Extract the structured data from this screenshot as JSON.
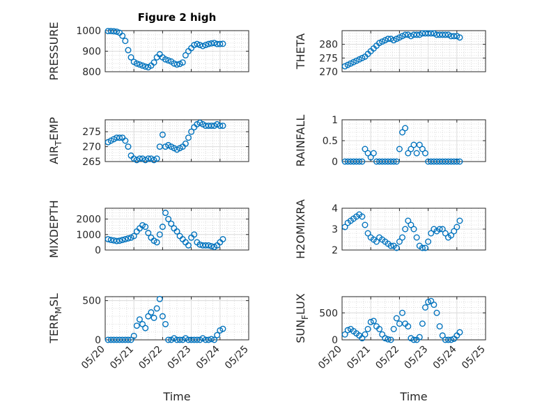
{
  "figure": {
    "title": "Figure 2 high",
    "xlabel": "Time"
  },
  "colors": {
    "marker": "#0072BD",
    "axis": "#262626",
    "grid": "#dcdcdc"
  },
  "chart_data": [
    {
      "type": "scatter",
      "panel": "left-1",
      "ylabel": "PRESSURE",
      "ylim": [
        800,
        1000
      ],
      "yticks": [
        800,
        900,
        1000
      ],
      "xlim": [
        "05/20",
        "05/25"
      ],
      "xticks": [
        "05/20",
        "05/21",
        "05/22",
        "05/23",
        "05/24",
        "05/25"
      ],
      "x_visible": false,
      "x_days": [
        0.1,
        0.2,
        0.3,
        0.4,
        0.5,
        0.6,
        0.7,
        0.8,
        0.9,
        1.0,
        1.1,
        1.2,
        1.3,
        1.4,
        1.5,
        1.6,
        1.7,
        1.8,
        1.9,
        2.0,
        2.1,
        2.2,
        2.3,
        2.4,
        2.5,
        2.6,
        2.7,
        2.8,
        2.9,
        3.0,
        3.1,
        3.2,
        3.3,
        3.4,
        3.5,
        3.6,
        3.7,
        3.8,
        3.9,
        4.0,
        4.1
      ],
      "values": [
        998,
        998,
        997,
        995,
        990,
        975,
        950,
        905,
        870,
        848,
        840,
        835,
        830,
        825,
        822,
        830,
        845,
        870,
        885,
        870,
        860,
        855,
        850,
        840,
        835,
        838,
        845,
        880,
        900,
        915,
        930,
        935,
        930,
        925,
        930,
        935,
        938,
        940,
        935,
        935,
        936
      ]
    },
    {
      "type": "scatter",
      "panel": "right-1",
      "ylabel": "THETA",
      "ylim": [
        270,
        285
      ],
      "yticks": [
        270,
        275,
        280
      ],
      "xlim": [
        "05/20",
        "05/25"
      ],
      "xticks": [
        "05/20",
        "05/21",
        "05/22",
        "05/23",
        "05/24",
        "05/25"
      ],
      "x_visible": false,
      "x_days": [
        0.1,
        0.2,
        0.3,
        0.4,
        0.5,
        0.6,
        0.7,
        0.8,
        0.9,
        1.0,
        1.1,
        1.2,
        1.3,
        1.4,
        1.5,
        1.6,
        1.7,
        1.8,
        1.9,
        2.0,
        2.1,
        2.2,
        2.3,
        2.4,
        2.5,
        2.6,
        2.7,
        2.8,
        2.9,
        3.0,
        3.1,
        3.2,
        3.3,
        3.4,
        3.5,
        3.6,
        3.7,
        3.8,
        3.9,
        4.0,
        4.1
      ],
      "values": [
        272,
        272.5,
        273,
        273.5,
        274,
        274.5,
        275,
        275.5,
        276.5,
        277.5,
        278.5,
        279.5,
        280.5,
        281,
        281.5,
        282,
        282,
        281.5,
        282,
        282.5,
        283,
        283.5,
        283.5,
        283,
        283.5,
        283.5,
        283.5,
        284,
        284,
        284,
        284,
        284,
        283.5,
        283.5,
        283.5,
        283.5,
        283.5,
        283,
        283,
        283,
        282.5
      ]
    },
    {
      "type": "scatter",
      "panel": "left-2",
      "ylabel": "AIR_TEMP",
      "ylim": [
        265,
        279
      ],
      "yticks": [
        265,
        270,
        275
      ],
      "xlim": [
        "05/20",
        "05/25"
      ],
      "xticks": [
        "05/20",
        "05/21",
        "05/22",
        "05/23",
        "05/24",
        "05/25"
      ],
      "x_visible": false,
      "x_days": [
        0.1,
        0.2,
        0.3,
        0.4,
        0.5,
        0.6,
        0.7,
        0.8,
        0.9,
        1.0,
        1.1,
        1.2,
        1.3,
        1.4,
        1.5,
        1.6,
        1.7,
        1.8,
        1.9,
        2.0,
        2.1,
        2.2,
        2.3,
        2.4,
        2.5,
        2.6,
        2.7,
        2.8,
        2.9,
        3.0,
        3.1,
        3.2,
        3.3,
        3.4,
        3.5,
        3.6,
        3.7,
        3.8,
        3.9,
        4.0,
        4.1
      ],
      "values": [
        271.5,
        272,
        272.5,
        273,
        273,
        273,
        272,
        270,
        267,
        266,
        265.5,
        266,
        266,
        265.5,
        266,
        266,
        265.5,
        266,
        270,
        274,
        270,
        270.5,
        270,
        269.5,
        269,
        269.5,
        270,
        271,
        273,
        275,
        276.5,
        277.5,
        278,
        277.5,
        277,
        277,
        277,
        277,
        277.5,
        277,
        277
      ]
    },
    {
      "type": "scatter",
      "panel": "right-2",
      "ylabel": "RAINFALL",
      "ylim": [
        0,
        1
      ],
      "yticks": [
        0,
        0.5,
        1
      ],
      "ytick_labels": [
        "0",
        "0.5",
        "1"
      ],
      "xlim": [
        "05/20",
        "05/25"
      ],
      "xticks": [
        "05/20",
        "05/21",
        "05/22",
        "05/23",
        "05/24",
        "05/25"
      ],
      "x_visible": false,
      "x_days": [
        0.1,
        0.2,
        0.3,
        0.4,
        0.5,
        0.6,
        0.7,
        0.8,
        0.9,
        1.0,
        1.1,
        1.2,
        1.3,
        1.4,
        1.5,
        1.6,
        1.7,
        1.8,
        1.9,
        2.0,
        2.1,
        2.2,
        2.3,
        2.4,
        2.5,
        2.6,
        2.7,
        2.8,
        2.9,
        3.0,
        3.1,
        3.2,
        3.3,
        3.4,
        3.5,
        3.6,
        3.7,
        3.8,
        3.9,
        4.0,
        4.1
      ],
      "values": [
        0,
        0,
        0,
        0,
        0,
        0,
        0,
        0.3,
        0.2,
        0.1,
        0.2,
        0,
        0,
        0,
        0,
        0,
        0,
        0,
        0,
        0.3,
        0.7,
        0.8,
        0.2,
        0.3,
        0.4,
        0.2,
        0.4,
        0.3,
        0.2,
        0,
        0,
        0,
        0,
        0,
        0,
        0,
        0,
        0,
        0,
        0,
        0
      ]
    },
    {
      "type": "scatter",
      "panel": "left-3",
      "ylabel": "MIXDEPTH",
      "ylim": [
        0,
        2700
      ],
      "yticks": [
        0,
        1000,
        2000
      ],
      "xlim": [
        "05/20",
        "05/25"
      ],
      "xticks": [
        "05/20",
        "05/21",
        "05/22",
        "05/23",
        "05/24",
        "05/25"
      ],
      "x_visible": false,
      "x_days": [
        0.1,
        0.2,
        0.3,
        0.4,
        0.5,
        0.6,
        0.7,
        0.8,
        0.9,
        1.0,
        1.1,
        1.2,
        1.3,
        1.4,
        1.5,
        1.6,
        1.7,
        1.8,
        1.9,
        2.0,
        2.1,
        2.2,
        2.3,
        2.4,
        2.5,
        2.6,
        2.7,
        2.8,
        2.9,
        3.0,
        3.1,
        3.2,
        3.3,
        3.4,
        3.5,
        3.6,
        3.7,
        3.8,
        3.9,
        4.0,
        4.1
      ],
      "values": [
        700,
        650,
        620,
        580,
        600,
        650,
        700,
        750,
        800,
        900,
        1200,
        1400,
        1600,
        1500,
        1100,
        800,
        600,
        500,
        1000,
        1500,
        2400,
        2000,
        1700,
        1400,
        1200,
        900,
        700,
        500,
        300,
        800,
        1000,
        500,
        350,
        300,
        300,
        300,
        250,
        200,
        300,
        500,
        700
      ]
    },
    {
      "type": "scatter",
      "panel": "right-3",
      "ylabel": "H2OMIXRA",
      "ylim": [
        2,
        4
      ],
      "yticks": [
        2,
        3,
        4
      ],
      "xlim": [
        "05/20",
        "05/25"
      ],
      "xticks": [
        "05/20",
        "05/21",
        "05/22",
        "05/23",
        "05/24",
        "05/25"
      ],
      "x_visible": false,
      "x_days": [
        0.1,
        0.2,
        0.3,
        0.4,
        0.5,
        0.6,
        0.7,
        0.8,
        0.9,
        1.0,
        1.1,
        1.2,
        1.3,
        1.4,
        1.5,
        1.6,
        1.7,
        1.8,
        1.9,
        2.0,
        2.1,
        2.2,
        2.3,
        2.4,
        2.5,
        2.6,
        2.7,
        2.8,
        2.9,
        3.0,
        3.1,
        3.2,
        3.3,
        3.4,
        3.5,
        3.6,
        3.7,
        3.8,
        3.9,
        4.0,
        4.1
      ],
      "values": [
        3.1,
        3.3,
        3.4,
        3.5,
        3.6,
        3.7,
        3.6,
        3.2,
        2.8,
        2.6,
        2.5,
        2.4,
        2.6,
        2.5,
        2.4,
        2.3,
        2.2,
        2.2,
        2.1,
        2.4,
        2.6,
        3.0,
        3.4,
        3.2,
        3.0,
        2.6,
        2.2,
        2.1,
        2.1,
        2.4,
        2.8,
        3.0,
        2.9,
        3.0,
        3.0,
        2.8,
        2.6,
        2.7,
        2.9,
        3.1,
        3.4
      ]
    },
    {
      "type": "scatter",
      "panel": "left-4",
      "ylabel": "TERR_MSL",
      "ylim": [
        0,
        550
      ],
      "yticks": [
        0,
        500
      ],
      "xlim": [
        "05/20",
        "05/25"
      ],
      "xticks": [
        "05/20",
        "05/21",
        "05/22",
        "05/23",
        "05/24",
        "05/25"
      ],
      "x_visible": true,
      "x_days": [
        0.1,
        0.2,
        0.3,
        0.4,
        0.5,
        0.6,
        0.7,
        0.8,
        0.9,
        1.0,
        1.1,
        1.2,
        1.3,
        1.4,
        1.5,
        1.6,
        1.7,
        1.8,
        1.9,
        2.0,
        2.1,
        2.2,
        2.3,
        2.4,
        2.5,
        2.6,
        2.7,
        2.8,
        2.9,
        3.0,
        3.1,
        3.2,
        3.3,
        3.4,
        3.5,
        3.6,
        3.7,
        3.8,
        3.9,
        4.0,
        4.1
      ],
      "values": [
        0,
        0,
        0,
        0,
        0,
        0,
        0,
        0,
        0,
        50,
        180,
        260,
        200,
        150,
        300,
        350,
        280,
        400,
        520,
        300,
        200,
        0,
        0,
        20,
        0,
        0,
        0,
        20,
        0,
        0,
        0,
        0,
        0,
        20,
        0,
        0,
        10,
        0,
        60,
        120,
        140
      ]
    },
    {
      "type": "scatter",
      "panel": "right-4",
      "ylabel": "SUN_FLUX",
      "ylim": [
        0,
        800
      ],
      "yticks": [
        0,
        500
      ],
      "xlim": [
        "05/20",
        "05/25"
      ],
      "xticks": [
        "05/20",
        "05/21",
        "05/22",
        "05/23",
        "05/24",
        "05/25"
      ],
      "x_visible": true,
      "x_days": [
        0.1,
        0.2,
        0.3,
        0.4,
        0.5,
        0.6,
        0.7,
        0.8,
        0.9,
        1.0,
        1.1,
        1.2,
        1.3,
        1.4,
        1.5,
        1.6,
        1.7,
        1.8,
        1.9,
        2.0,
        2.1,
        2.2,
        2.3,
        2.4,
        2.5,
        2.6,
        2.7,
        2.8,
        2.9,
        3.0,
        3.1,
        3.2,
        3.3,
        3.4,
        3.5,
        3.6,
        3.7,
        3.8,
        3.9,
        4.0,
        4.1
      ],
      "values": [
        100,
        180,
        200,
        160,
        120,
        80,
        30,
        100,
        200,
        330,
        350,
        250,
        200,
        100,
        30,
        10,
        0,
        200,
        400,
        300,
        500,
        300,
        250,
        30,
        0,
        0,
        50,
        300,
        600,
        700,
        720,
        650,
        500,
        250,
        80,
        0,
        0,
        0,
        20,
        80,
        140
      ]
    }
  ]
}
